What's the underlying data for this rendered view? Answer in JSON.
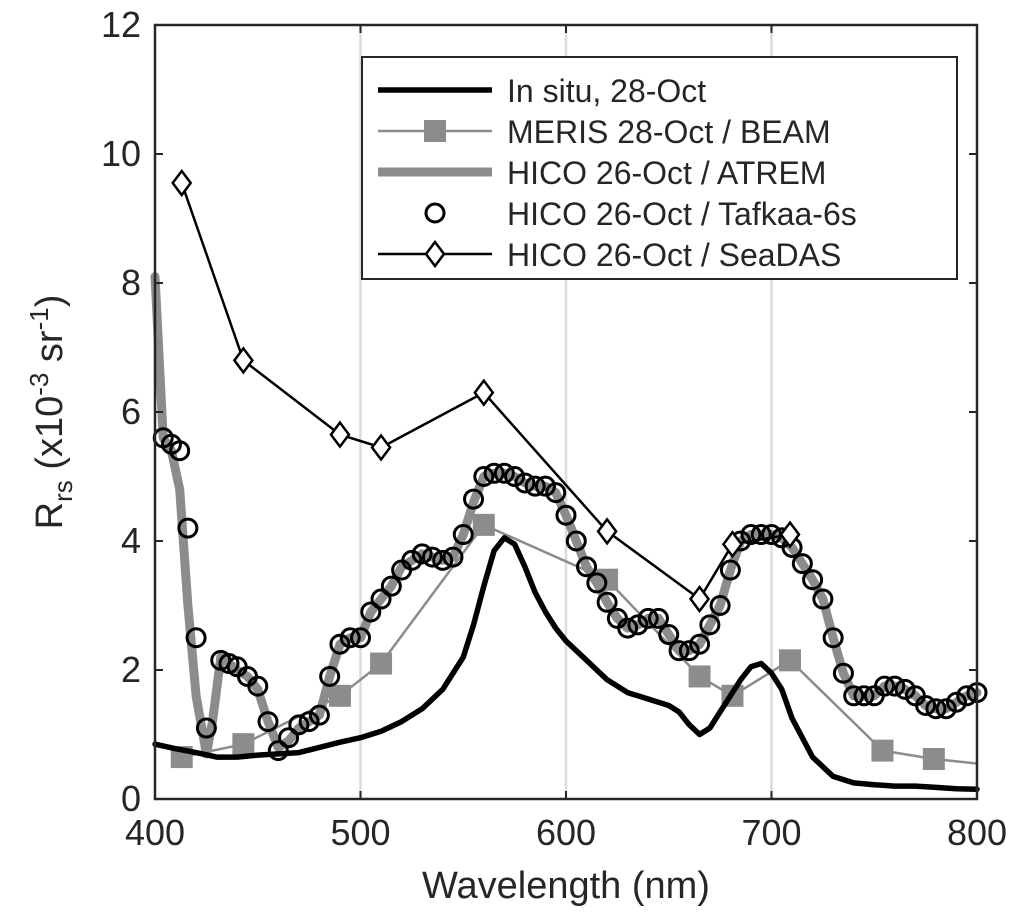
{
  "chart_data": {
    "type": "line",
    "xlabel": "Wavelength (nm)",
    "ylabel": {
      "base": "R",
      "sub": "rs",
      "units_pre": " (x10",
      "exp1": "-3",
      "units_mid": " sr",
      "exp2": "-1",
      "units_post": ")"
    },
    "xlim": [
      400,
      800
    ],
    "ylim": [
      0,
      12
    ],
    "xticks": [
      400,
      500,
      600,
      700,
      800
    ],
    "yticks": [
      0,
      2,
      4,
      6,
      8,
      10,
      12
    ],
    "vgrid": [
      500,
      600,
      700
    ],
    "legend_position": "top-right",
    "series": [
      {
        "name": "In situ, 28-Oct",
        "style": "line",
        "color": "#000000",
        "x": [
          400,
          410,
          420,
          430,
          440,
          450,
          460,
          470,
          480,
          490,
          500,
          510,
          520,
          530,
          540,
          550,
          555,
          560,
          565,
          570,
          575,
          580,
          585,
          590,
          595,
          600,
          610,
          620,
          630,
          640,
          650,
          655,
          660,
          665,
          670,
          675,
          680,
          685,
          690,
          695,
          700,
          705,
          710,
          720,
          730,
          740,
          750,
          760,
          770,
          780,
          790,
          800
        ],
        "values": [
          0.85,
          0.78,
          0.72,
          0.65,
          0.65,
          0.68,
          0.7,
          0.72,
          0.8,
          0.88,
          0.95,
          1.05,
          1.2,
          1.4,
          1.7,
          2.2,
          2.7,
          3.3,
          3.85,
          4.05,
          3.95,
          3.6,
          3.2,
          2.9,
          2.65,
          2.45,
          2.15,
          1.85,
          1.65,
          1.55,
          1.45,
          1.35,
          1.15,
          1.0,
          1.1,
          1.35,
          1.6,
          1.85,
          2.05,
          2.1,
          1.95,
          1.7,
          1.25,
          0.65,
          0.35,
          0.25,
          0.22,
          0.2,
          0.2,
          0.18,
          0.16,
          0.15
        ]
      },
      {
        "name": "MERIS 28-Oct / BEAM",
        "style": "line-square",
        "color": "#8c8c8c",
        "x": [
          413,
          443,
          490,
          510,
          560,
          620,
          665,
          681,
          709,
          754,
          779,
          800
        ],
        "values": [
          0.65,
          0.85,
          1.6,
          2.1,
          4.25,
          3.4,
          1.9,
          1.6,
          2.15,
          0.75,
          0.62,
          0.55
        ]
      },
      {
        "name": "HICO 26-Oct / ATREM",
        "style": "thick-line",
        "color": "#8c8c8c",
        "x": [
          400,
          404,
          408,
          412,
          416,
          420,
          425,
          428,
          432,
          436,
          440,
          445,
          450,
          455,
          460,
          465,
          470,
          475,
          480,
          485,
          490,
          495,
          500,
          505,
          510,
          515,
          520,
          525,
          530,
          535,
          540,
          545,
          550,
          555,
          560,
          565,
          570,
          575,
          580,
          585,
          590,
          595,
          600,
          605,
          610,
          615,
          620,
          625,
          630,
          635,
          640,
          645,
          650,
          655,
          660,
          665,
          670,
          675,
          680,
          685,
          690,
          695,
          700,
          705,
          710,
          715,
          720,
          725,
          730,
          735,
          740,
          745,
          750,
          755,
          760,
          765,
          770,
          775,
          780,
          785,
          790,
          795,
          800
        ],
        "values": [
          8.1,
          5.6,
          5.4,
          4.8,
          3.0,
          1.6,
          0.7,
          1.2,
          2.2,
          2.1,
          2.0,
          1.9,
          1.7,
          1.2,
          0.8,
          0.9,
          1.1,
          1.2,
          1.3,
          1.9,
          2.4,
          2.5,
          2.5,
          2.9,
          3.1,
          3.3,
          3.6,
          3.7,
          3.8,
          3.75,
          3.7,
          3.75,
          4.1,
          4.6,
          5.0,
          5.05,
          5.05,
          5.0,
          4.9,
          4.85,
          4.85,
          4.75,
          4.4,
          4.0,
          3.6,
          3.35,
          3.05,
          2.8,
          2.65,
          2.7,
          2.8,
          2.8,
          2.55,
          2.3,
          2.3,
          2.4,
          2.7,
          3.0,
          3.55,
          4.0,
          4.1,
          4.1,
          4.1,
          4.05,
          3.9,
          3.65,
          3.4,
          3.1,
          2.5,
          1.95,
          1.6,
          1.6,
          1.6,
          1.75,
          1.75,
          1.7,
          1.6,
          1.45,
          1.4,
          1.4,
          1.5,
          1.6,
          1.65
        ]
      },
      {
        "name": "HICO 26-Oct / Tafkaa-6s",
        "style": "circles",
        "color": "#000000",
        "x": [
          404,
          408,
          412,
          416,
          420,
          425,
          432,
          436,
          440,
          445,
          450,
          455,
          460,
          465,
          470,
          475,
          480,
          485,
          490,
          495,
          500,
          505,
          510,
          515,
          520,
          525,
          530,
          535,
          540,
          545,
          550,
          555,
          560,
          565,
          570,
          575,
          580,
          585,
          590,
          595,
          600,
          605,
          610,
          615,
          620,
          625,
          630,
          635,
          640,
          645,
          650,
          655,
          660,
          665,
          670,
          675,
          680,
          685,
          690,
          695,
          700,
          705,
          710,
          715,
          720,
          725,
          730,
          735,
          740,
          745,
          750,
          755,
          760,
          765,
          770,
          775,
          780,
          785,
          790,
          795,
          800
        ],
        "values": [
          5.6,
          5.5,
          5.4,
          4.2,
          2.5,
          1.1,
          2.15,
          2.1,
          2.05,
          1.9,
          1.75,
          1.2,
          0.75,
          0.95,
          1.15,
          1.2,
          1.3,
          1.9,
          2.4,
          2.5,
          2.5,
          2.9,
          3.1,
          3.3,
          3.55,
          3.7,
          3.8,
          3.75,
          3.7,
          3.75,
          4.1,
          4.65,
          5.0,
          5.05,
          5.05,
          5.0,
          4.9,
          4.85,
          4.85,
          4.75,
          4.4,
          4.0,
          3.6,
          3.35,
          3.05,
          2.8,
          2.65,
          2.7,
          2.8,
          2.8,
          2.55,
          2.3,
          2.3,
          2.4,
          2.7,
          3.0,
          3.55,
          4.0,
          4.1,
          4.1,
          4.1,
          4.05,
          3.9,
          3.65,
          3.4,
          3.1,
          2.5,
          1.95,
          1.6,
          1.6,
          1.6,
          1.75,
          1.75,
          1.7,
          1.6,
          1.45,
          1.4,
          1.4,
          1.5,
          1.6,
          1.65
        ]
      },
      {
        "name": "HICO 26-Oct / SeaDAS",
        "style": "line-diamond",
        "color": "#000000",
        "x": [
          413,
          443,
          490,
          510,
          560,
          620,
          665,
          681,
          709
        ],
        "values": [
          9.55,
          6.8,
          5.65,
          5.45,
          6.3,
          4.15,
          3.1,
          3.95,
          4.1
        ]
      }
    ]
  }
}
